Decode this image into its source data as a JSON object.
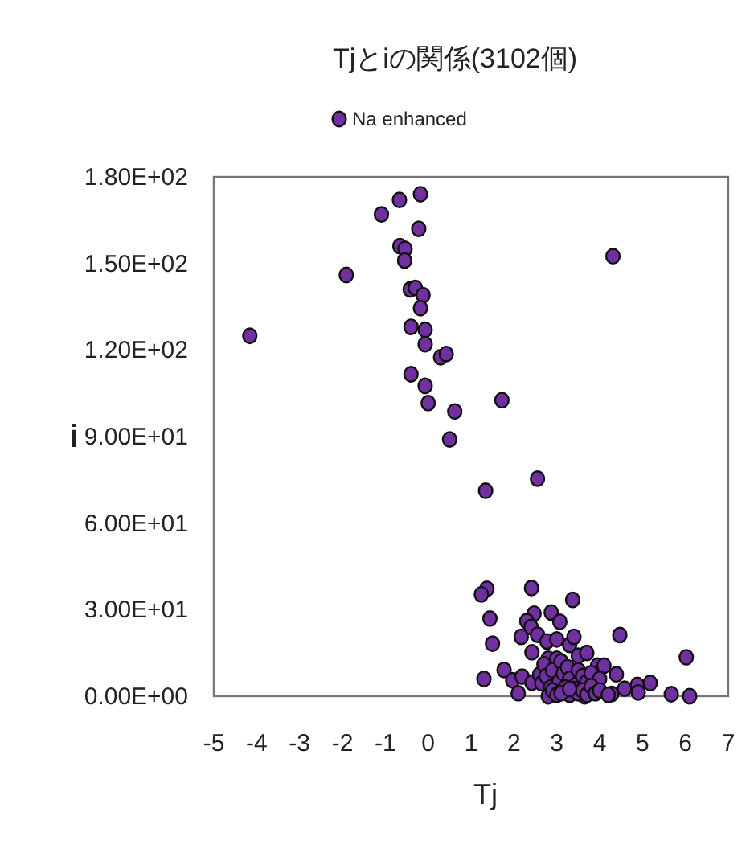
{
  "chart_data": {
    "type": "scatter",
    "title": "Tjとiの関係(3102個)",
    "xlabel": "Tj",
    "ylabel": "i",
    "legend": "top",
    "marker": "circle",
    "grid": false,
    "xlim": [
      -5,
      7
    ],
    "xticks": [
      -5,
      -4,
      -3,
      -2,
      -1,
      0,
      1,
      2,
      3,
      4,
      5,
      6,
      7
    ],
    "ylim": [
      0,
      180
    ],
    "yticks": [
      {
        "value": 0,
        "label": "0.00E+00"
      },
      {
        "value": 30,
        "label": "3.00E+01"
      },
      {
        "value": 60,
        "label": "6.00E+01"
      },
      {
        "value": 90,
        "label": "9.00E+01"
      },
      {
        "value": 120,
        "label": "1.20E+02"
      },
      {
        "value": 150,
        "label": "1.50E+02"
      },
      {
        "value": 180,
        "label": "1.80E+02"
      }
    ],
    "series": [
      {
        "name": "Na enhanced",
        "color": "#7030a0",
        "x": [
          -4.16,
          -1.91,
          -1.09,
          -0.67,
          -0.18,
          -0.22,
          -0.66,
          -0.54,
          -0.55,
          4.31,
          -0.42,
          -0.3,
          -0.12,
          -0.18,
          -0.4,
          -0.07,
          -0.07,
          0.29,
          0.42,
          -0.4,
          -0.07,
          0.0,
          0.62,
          1.72,
          0.5,
          2.55,
          1.34,
          1.37,
          1.24,
          2.41,
          3.37,
          1.44,
          1.5,
          1.3,
          2.87,
          2.47,
          2.3,
          2.4,
          3.07,
          2.17,
          2.55,
          2.77,
          3.0,
          3.3,
          3.4,
          4.47,
          2.42,
          2.8,
          3.0,
          6.02,
          1.77,
          1.97,
          2.19,
          2.1,
          2.42,
          2.6,
          2.65,
          3.95,
          4.1,
          4.39,
          4.88,
          4.9,
          5.18,
          5.67,
          6.1,
          4.58,
          4.28,
          2.7,
          2.75,
          2.85,
          2.9,
          3.05,
          3.1,
          3.15,
          3.25,
          3.3,
          3.45,
          3.5,
          3.6,
          3.65,
          3.7,
          3.8,
          4.0,
          2.8,
          2.9,
          3.0,
          3.1,
          3.2,
          3.3,
          3.4,
          3.5,
          3.6,
          3.7,
          3.8,
          3.9,
          4.0,
          4.2,
          3.1,
          3.3,
          3.5,
          3.7
        ],
        "values": [
          124.9,
          146,
          167,
          172,
          174,
          162,
          156,
          155,
          151,
          152.5,
          141,
          141.5,
          139,
          134.5,
          128,
          127,
          122,
          117.5,
          118.6,
          111.6,
          107.6,
          101.6,
          98.7,
          102.6,
          89,
          75.4,
          71.2,
          37.2,
          35.3,
          37.5,
          33.4,
          26.9,
          18.2,
          6,
          29,
          28.6,
          26,
          24,
          25.8,
          20.6,
          21.3,
          19,
          19.7,
          17.8,
          20.6,
          21.2,
          15.2,
          13,
          13,
          13.5,
          9.1,
          5.5,
          6.8,
          1,
          4.7,
          7.5,
          4.5,
          10.6,
          10.6,
          7.6,
          3.9,
          1.3,
          4.6,
          0.7,
          0,
          2.6,
          0.8,
          11,
          7,
          3,
          9,
          5,
          12,
          8,
          10,
          6,
          4,
          9,
          7,
          0,
          5,
          8,
          6,
          0,
          2,
          0.5,
          1.5,
          3,
          0.5,
          2.5,
          1,
          2,
          0.5,
          3.5,
          1,
          2,
          0.5,
          1,
          2.5,
          14,
          15
        ]
      }
    ]
  }
}
